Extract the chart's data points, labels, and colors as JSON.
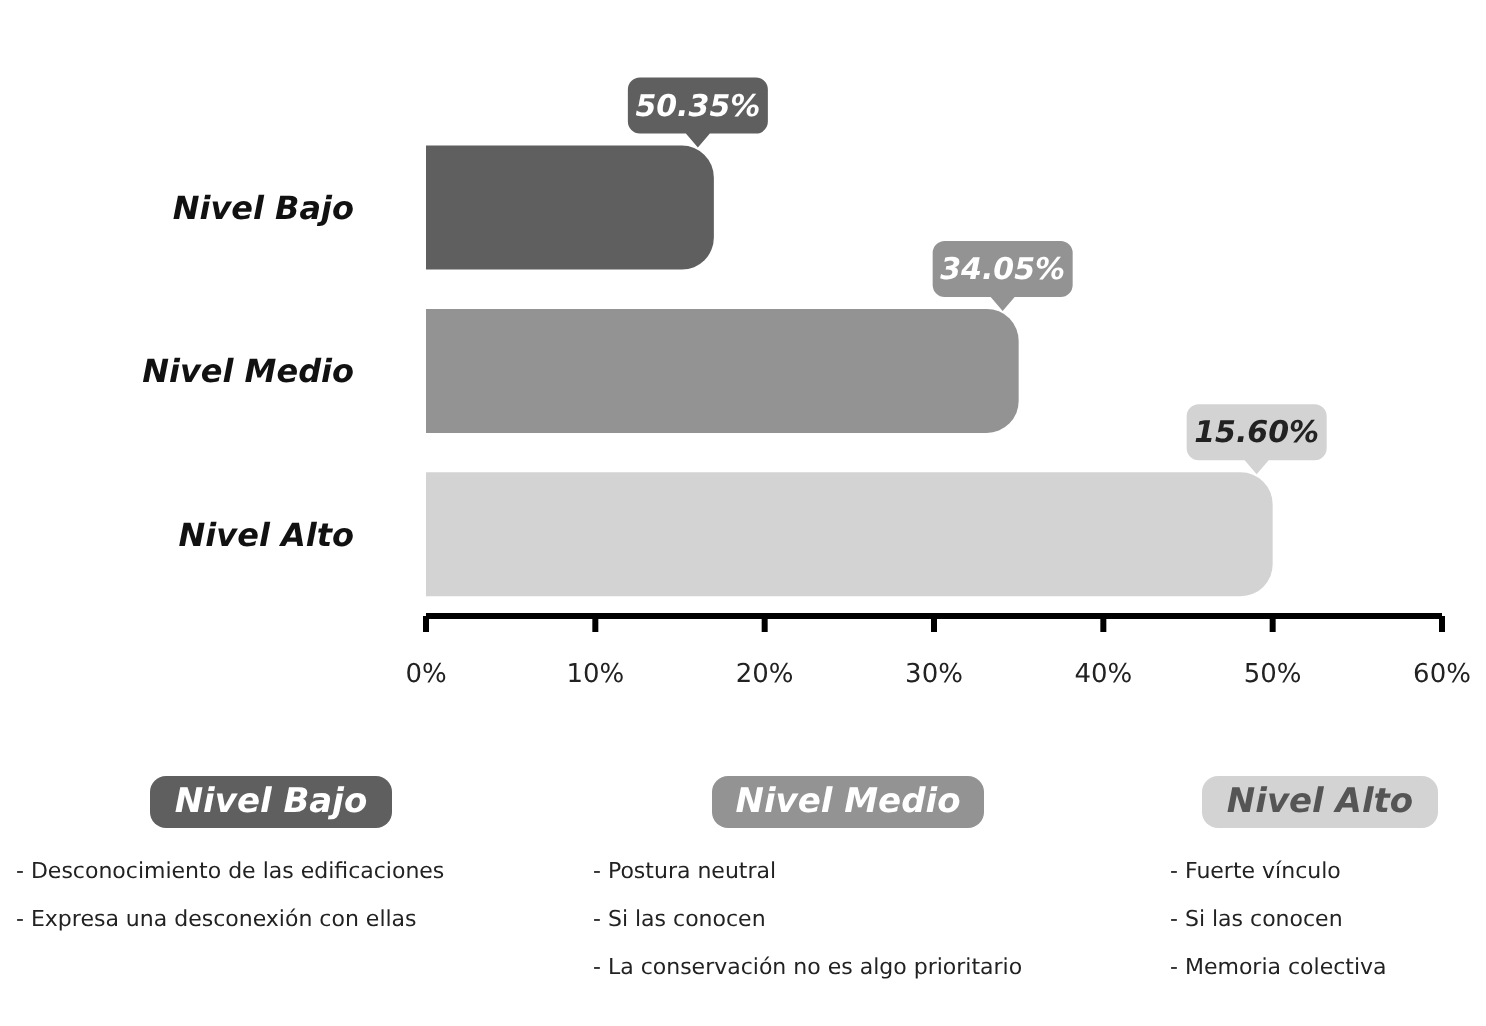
{
  "chart_data": {
    "type": "bar",
    "orientation": "horizontal",
    "categories": [
      "Nivel Bajo",
      "Nivel Medio",
      "Nivel Alto"
    ],
    "values": [
      17,
      35,
      50
    ],
    "colors": [
      "#5f5f5f",
      "#939393",
      "#d3d3d3"
    ],
    "xlim": [
      0,
      60
    ],
    "xticks": [
      {
        "value": 0,
        "label": "0%"
      },
      {
        "value": 10,
        "label": "10%"
      },
      {
        "value": 20,
        "label": "20%"
      },
      {
        "value": 30,
        "label": "30%"
      },
      {
        "value": 40,
        "label": "40%"
      },
      {
        "value": 50,
        "label": "50%"
      },
      {
        "value": 60,
        "label": "60%"
      }
    ],
    "grid": false,
    "legend": false,
    "annotations": [
      {
        "text": "50.35%",
        "x": 17,
        "y": "Nivel Bajo"
      },
      {
        "text": "34.05%",
        "x": 35,
        "y": "Nivel Medio"
      },
      {
        "text": "15.60%",
        "x": 50,
        "y": "Nivel Alto"
      },
      "- Desconocimiento de las edificaciones\n- Expresa una desconexión con ellas",
      "- Postura neutral\n- Si las conocen\n- La conservación no es algo prioritario",
      "- Fuerte vínculo\n- Si las conocen\n- Memoria colectiva"
    ]
  }
}
